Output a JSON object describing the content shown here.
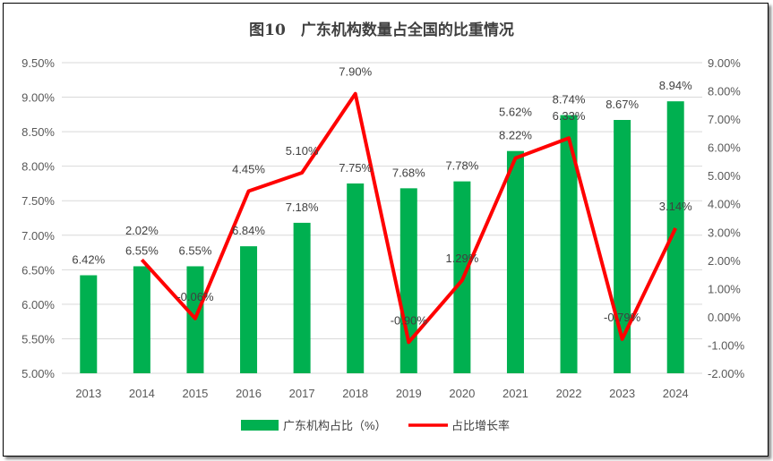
{
  "chart_data": {
    "type": "bar+line",
    "title": "图10　广东机构数量占全国的比重情况",
    "categories": [
      "2013",
      "2014",
      "2015",
      "2016",
      "2017",
      "2018",
      "2019",
      "2020",
      "2021",
      "2022",
      "2023",
      "2024"
    ],
    "series": [
      {
        "name": "广东机构占比（%）",
        "type": "bar",
        "axis": "left",
        "color": "#00B050",
        "values": [
          6.42,
          6.55,
          6.55,
          6.84,
          7.18,
          7.75,
          7.68,
          7.78,
          8.22,
          8.74,
          8.67,
          8.94
        ],
        "labels": [
          "6.42%",
          "6.55%",
          "6.55%",
          "6.84%",
          "7.18%",
          "7.75%",
          "7.68%",
          "7.78%",
          "8.22%",
          "8.74%",
          "8.67%",
          "8.94%"
        ]
      },
      {
        "name": "占比增长率",
        "type": "line",
        "axis": "right",
        "color": "#FF0000",
        "values": [
          null,
          2.02,
          -0.06,
          4.45,
          5.1,
          7.9,
          -0.9,
          1.29,
          5.62,
          6.33,
          -0.79,
          3.14
        ],
        "labels": [
          "",
          "2.02%",
          "-0.06%",
          "4.45%",
          "5.10%",
          "7.90%",
          "-0.90%",
          "1.29%",
          "5.62%",
          "6.33%",
          "-0.79%",
          "3.14%"
        ]
      }
    ],
    "ylim_left": [
      5.0,
      9.5
    ],
    "yticks_left": [
      "5.00%",
      "5.50%",
      "6.00%",
      "6.50%",
      "7.00%",
      "7.50%",
      "8.00%",
      "8.50%",
      "9.00%",
      "9.50%"
    ],
    "ylim_right": [
      -2.0,
      9.0
    ],
    "yticks_right": [
      "-2.00%",
      "-1.00%",
      "0.00%",
      "1.00%",
      "2.00%",
      "3.00%",
      "4.00%",
      "5.00%",
      "6.00%",
      "7.00%",
      "8.00%",
      "9.00%"
    ],
    "grid": true,
    "legend": "bottom"
  }
}
